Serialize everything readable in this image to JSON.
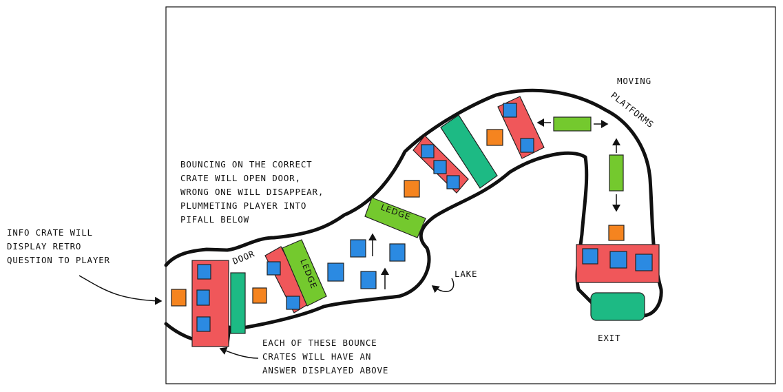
{
  "colors": {
    "crate_blue": "#2b8ae2",
    "crate_orange": "#f5841f",
    "red_platform": "#f0575a",
    "green_ledge": "#74c92e",
    "teal_door": "#1dba84",
    "ink": "#111111"
  },
  "notes": {
    "info_crate": [
      "INFO CRATE WILL",
      "DISPLAY RETRO",
      "QUESTION TO PLAYER"
    ],
    "bouncing": [
      "BOUNCING ON THE CORRECT",
      "CRATE WILL OPEN DOOR,",
      "WRONG ONE WILL DISAPPEAR,",
      "PLUMMETING PLAYER INTO",
      "PIFALL BELOW"
    ],
    "bounce_crates": [
      "EACH OF THESE BOUNCE",
      "CRATES WILL HAVE AN",
      "ANSWER DISPLAYED ABOVE"
    ],
    "door": "DOOR",
    "ledge_1": "LEDGE",
    "ledge_2": "LEDGE",
    "lake": "LAKE",
    "moving_platforms": [
      "MOVING",
      "PLATFORMS"
    ],
    "exit": "EXIT"
  }
}
